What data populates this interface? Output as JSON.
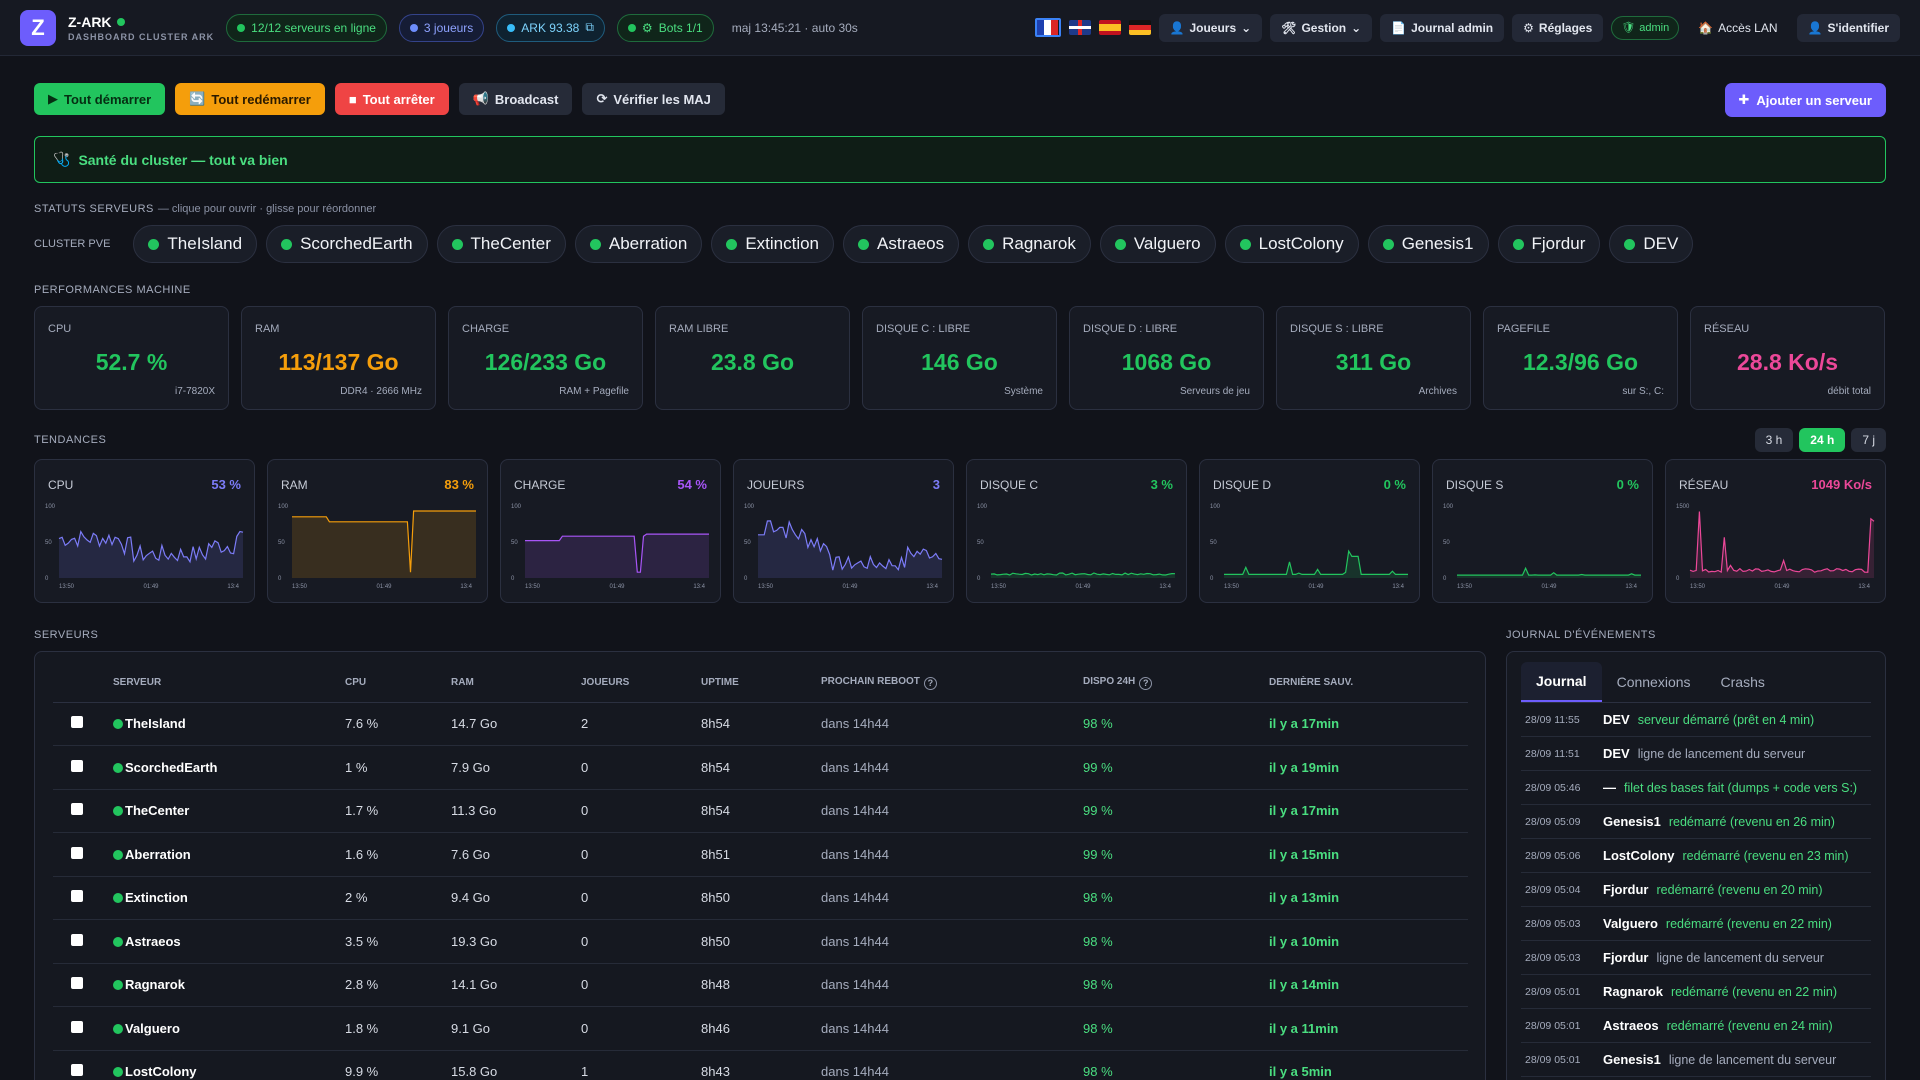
{
  "brand": {
    "logo": "Z",
    "name": "Z-ARK",
    "subtitle": "DASHBOARD CLUSTER ARK"
  },
  "status": {
    "servers": "12/12 serveurs en ligne",
    "players": "3 joueurs",
    "ark": "ARK 93.38",
    "bots": "Bots 1/1",
    "updated": "maj 13:45:21 · auto 30s"
  },
  "nav": {
    "players": "Joueurs",
    "manage": "Gestion",
    "journal": "Journal admin",
    "settings": "Réglages",
    "admin": "admin",
    "lan": "Accès LAN",
    "login": "S'identifier"
  },
  "actions": {
    "start_all": "Tout démarrer",
    "restart_all": "Tout redémarrer",
    "stop_all": "Tout arrêter",
    "broadcast": "Broadcast",
    "check_updates": "Vérifier les MAJ",
    "add_server": "Ajouter un serveur"
  },
  "health": "Santé du cluster — tout va bien",
  "server_status": {
    "title": "STATUTS SERVEURS",
    "hint": "— clique pour ouvrir · glisse pour réordonner",
    "cluster_label": "CLUSTER PVE",
    "chips": [
      "TheIsland",
      "ScorchedEarth",
      "TheCenter",
      "Aberration",
      "Extinction",
      "Astraeos",
      "Ragnarok",
      "Valguero",
      "LostColony",
      "Genesis1",
      "Fjordur",
      "DEV"
    ]
  },
  "perf": {
    "title": "PERFORMANCES MACHINE",
    "cards": [
      {
        "label": "CPU",
        "value": "52.7 %",
        "sub": "i7-7820X",
        "color": "#22c55e"
      },
      {
        "label": "RAM",
        "value": "113/137 Go",
        "sub": "DDR4 · 2666 MHz",
        "color": "#f59e0b"
      },
      {
        "label": "CHARGE",
        "value": "126/233 Go",
        "sub": "RAM + Pagefile",
        "color": "#22c55e"
      },
      {
        "label": "RAM LIBRE",
        "value": "23.8 Go",
        "sub": "",
        "color": "#22c55e"
      },
      {
        "label": "DISQUE C : LIBRE",
        "value": "146 Go",
        "sub": "Système",
        "color": "#22c55e"
      },
      {
        "label": "DISQUE D : LIBRE",
        "value": "1068 Go",
        "sub": "Serveurs de jeu",
        "color": "#22c55e"
      },
      {
        "label": "DISQUE S : LIBRE",
        "value": "311 Go",
        "sub": "Archives",
        "color": "#22c55e"
      },
      {
        "label": "PAGEFILE",
        "value": "12.3/96 Go",
        "sub": "sur S:, C:",
        "color": "#22c55e"
      },
      {
        "label": "RÉSEAU",
        "value": "28.8 Ko/s",
        "sub": "débit total",
        "color": "#ec4899"
      }
    ]
  },
  "trends": {
    "title": "TENDANCES",
    "ranges": [
      "3 h",
      "24 h",
      "7 j"
    ],
    "active_range": "24 h",
    "cards": [
      {
        "label": "CPU",
        "value": "53 %",
        "color": "#7c7cf8",
        "ymax": "100",
        "ymid": "50",
        "x": [
          "13:50",
          "01:49",
          "13:4"
        ]
      },
      {
        "label": "RAM",
        "value": "83 %",
        "color": "#f59e0b",
        "ymax": "100",
        "ymid": "50",
        "x": [
          "13:50",
          "01:49",
          "13:4"
        ]
      },
      {
        "label": "CHARGE",
        "value": "54 %",
        "color": "#a855f7",
        "ymax": "100",
        "ymid": "50",
        "x": [
          "13:50",
          "01:49",
          "13:4"
        ]
      },
      {
        "label": "JOUEURS",
        "value": "3",
        "color": "#7c7cf8",
        "ymax": "100",
        "ymid": "50",
        "x": [
          "13:50",
          "01:49",
          "13:4"
        ]
      },
      {
        "label": "DISQUE C",
        "value": "3 %",
        "color": "#22c55e",
        "ymax": "100",
        "ymid": "50",
        "x": [
          "13:50",
          "01:49",
          "13:4"
        ]
      },
      {
        "label": "DISQUE D",
        "value": "0 %",
        "color": "#22c55e",
        "ymax": "100",
        "ymid": "50",
        "x": [
          "13:50",
          "01:49",
          "13:4"
        ]
      },
      {
        "label": "DISQUE S",
        "value": "0 %",
        "color": "#22c55e",
        "ymax": "100",
        "ymid": "50",
        "x": [
          "13:50",
          "01:49",
          "13:4"
        ]
      },
      {
        "label": "RÉSEAU",
        "value": "1049 Ko/s",
        "color": "#ec4899",
        "ymax": "1500",
        "ymid": "",
        "x": [
          "13:50",
          "01:49",
          "13:4"
        ]
      }
    ]
  },
  "servers": {
    "title": "SERVEURS",
    "headers": [
      "SERVEUR",
      "CPU",
      "RAM",
      "JOUEURS",
      "UPTIME",
      "PROCHAIN REBOOT",
      "DISPO 24H",
      "DERNIÈRE SAUV."
    ],
    "rows": [
      [
        "TheIsland",
        "7.6 %",
        "14.7 Go",
        "2",
        "8h54",
        "dans 14h44",
        "98 %",
        "il y a 17min"
      ],
      [
        "ScorchedEarth",
        "1 %",
        "7.9 Go",
        "0",
        "8h54",
        "dans 14h44",
        "99 %",
        "il y a 19min"
      ],
      [
        "TheCenter",
        "1.7 %",
        "11.3 Go",
        "0",
        "8h54",
        "dans 14h44",
        "99 %",
        "il y a 17min"
      ],
      [
        "Aberration",
        "1.6 %",
        "7.6 Go",
        "0",
        "8h51",
        "dans 14h44",
        "99 %",
        "il y a 15min"
      ],
      [
        "Extinction",
        "2 %",
        "9.4 Go",
        "0",
        "8h50",
        "dans 14h44",
        "98 %",
        "il y a 13min"
      ],
      [
        "Astraeos",
        "3.5 %",
        "19.3 Go",
        "0",
        "8h50",
        "dans 14h44",
        "98 %",
        "il y a 10min"
      ],
      [
        "Ragnarok",
        "2.8 %",
        "14.1 Go",
        "0",
        "8h48",
        "dans 14h44",
        "98 %",
        "il y a 14min"
      ],
      [
        "Valguero",
        "1.8 %",
        "9.1 Go",
        "0",
        "8h46",
        "dans 14h44",
        "98 %",
        "il y a 11min"
      ],
      [
        "LostColony",
        "9.9 %",
        "15.8 Go",
        "1",
        "8h43",
        "dans 14h44",
        "98 %",
        "il y a 5min"
      ]
    ]
  },
  "journal": {
    "title": "JOURNAL D'ÉVÉNEMENTS",
    "tabs": [
      "Journal",
      "Connexions",
      "Crashs"
    ],
    "events": [
      {
        "time": "28/09 11:55",
        "server": "DEV",
        "msg": "serveur démarré (prêt en 4 min)",
        "type": "ok"
      },
      {
        "time": "28/09 11:51",
        "server": "DEV",
        "msg": "ligne de lancement du serveur",
        "type": "info"
      },
      {
        "time": "28/09 05:46",
        "server": "—",
        "msg": "filet des bases fait (dumps + code vers S:)",
        "type": "ok"
      },
      {
        "time": "28/09 05:09",
        "server": "Genesis1",
        "msg": "redémarré (revenu en 26 min)",
        "type": "ok"
      },
      {
        "time": "28/09 05:06",
        "server": "LostColony",
        "msg": "redémarré (revenu en 23 min)",
        "type": "ok"
      },
      {
        "time": "28/09 05:04",
        "server": "Fjordur",
        "msg": "redémarré (revenu en 20 min)",
        "type": "ok"
      },
      {
        "time": "28/09 05:03",
        "server": "Valguero",
        "msg": "redémarré (revenu en 22 min)",
        "type": "ok"
      },
      {
        "time": "28/09 05:03",
        "server": "Fjordur",
        "msg": "ligne de lancement du serveur",
        "type": "info"
      },
      {
        "time": "28/09 05:01",
        "server": "Ragnarok",
        "msg": "redémarré (revenu en 22 min)",
        "type": "ok"
      },
      {
        "time": "28/09 05:01",
        "server": "Astraeos",
        "msg": "redémarré (revenu en 24 min)",
        "type": "ok"
      },
      {
        "time": "28/09 05:01",
        "server": "Genesis1",
        "msg": "ligne de lancement du serveur",
        "type": "info"
      }
    ]
  }
}
